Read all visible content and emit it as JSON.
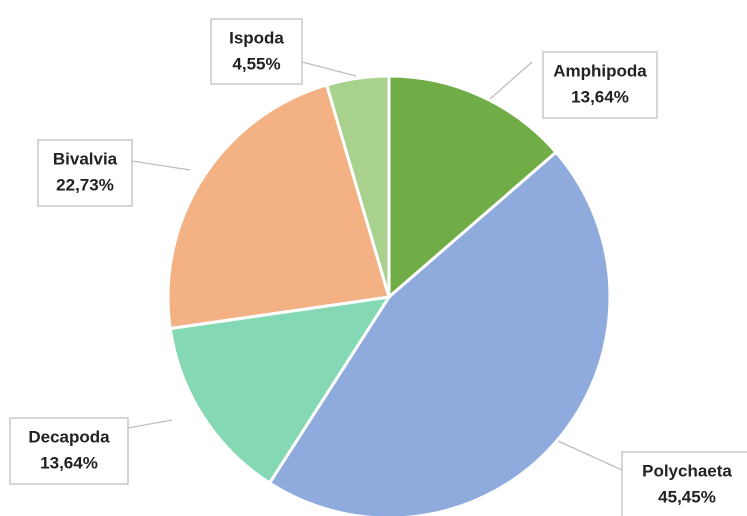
{
  "chart_data": {
    "type": "pie",
    "categories": [
      "Amphipoda",
      "Polychaeta",
      "Decapoda",
      "Bivalvia",
      "Ispoda"
    ],
    "values": [
      13.64,
      45.45,
      13.64,
      22.73,
      4.55
    ],
    "value_labels": [
      "13,64%",
      "45,45%",
      "13,64%",
      "22,73%",
      "4,55%"
    ],
    "colors": [
      "#70ad47",
      "#8faadc",
      "#84d9b4",
      "#f4b183",
      "#a9d18e"
    ]
  }
}
